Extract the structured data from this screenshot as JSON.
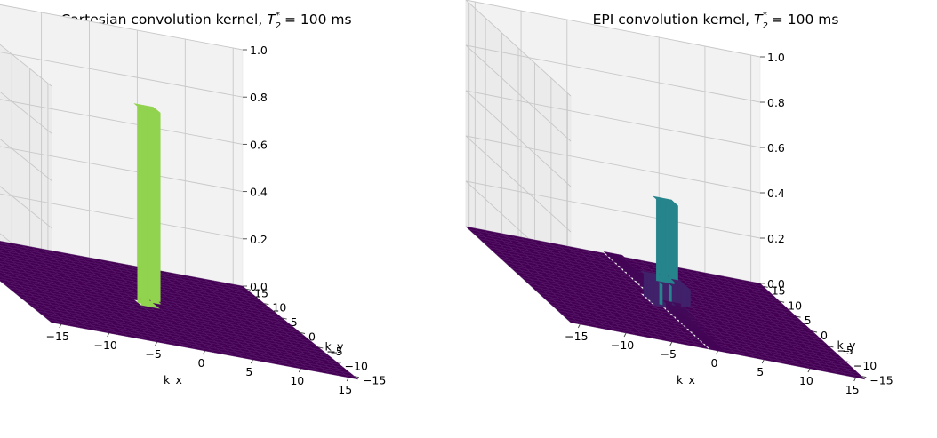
{
  "chart_data": [
    {
      "type": "surface3d",
      "title": "Cartesian convolution kernel, T2* = 100 ms",
      "title_parts": {
        "prefix": "Cartesian convolution kernel, ",
        "symbol": "T",
        "subscript": "2",
        "superscript": "*",
        "suffix": " = 100 ms"
      },
      "xlabel": "k_x",
      "ylabel": "k_y",
      "zlabel": "",
      "xlim": [
        -16,
        16
      ],
      "ylim": [
        -16,
        16
      ],
      "zlim": [
        0,
        1
      ],
      "xticks": [
        "−15",
        "−10",
        "−5",
        "0",
        "5",
        "10",
        "15"
      ],
      "yticks": [
        "−15",
        "−10",
        "−5",
        "0",
        "5",
        "10",
        "15"
      ],
      "zticks": [
        "0.0",
        "0.2",
        "0.4",
        "0.6",
        "0.8",
        "1.0"
      ],
      "colormap": "viridis",
      "grid": true,
      "kernel": {
        "kind": "cartesian",
        "peak": 0.83,
        "center": [
          0,
          0
        ]
      }
    },
    {
      "type": "surface3d",
      "title": "EPI convolution kernel, T2* = 100 ms",
      "title_parts": {
        "prefix": "EPI convolution kernel, ",
        "symbol": "T",
        "subscript": "2",
        "superscript": "*",
        "suffix": " = 100 ms"
      },
      "xlabel": "k_x",
      "ylabel": "k_y",
      "zlabel": "",
      "xlim": [
        -16,
        16
      ],
      "ylim": [
        -16,
        16
      ],
      "zlim": [
        0,
        1
      ],
      "xticks": [
        "−15",
        "−10",
        "−5",
        "0",
        "5",
        "10",
        "15"
      ],
      "yticks": [
        "−15",
        "−10",
        "−5",
        "0",
        "5",
        "10",
        "15"
      ],
      "zticks": [
        "0.0",
        "0.2",
        "0.4",
        "0.6",
        "0.8",
        "1.0"
      ],
      "colormap": "viridis",
      "grid": true,
      "kernel": {
        "kind": "epi",
        "peak": 0.45,
        "center": [
          0,
          0
        ]
      }
    }
  ]
}
